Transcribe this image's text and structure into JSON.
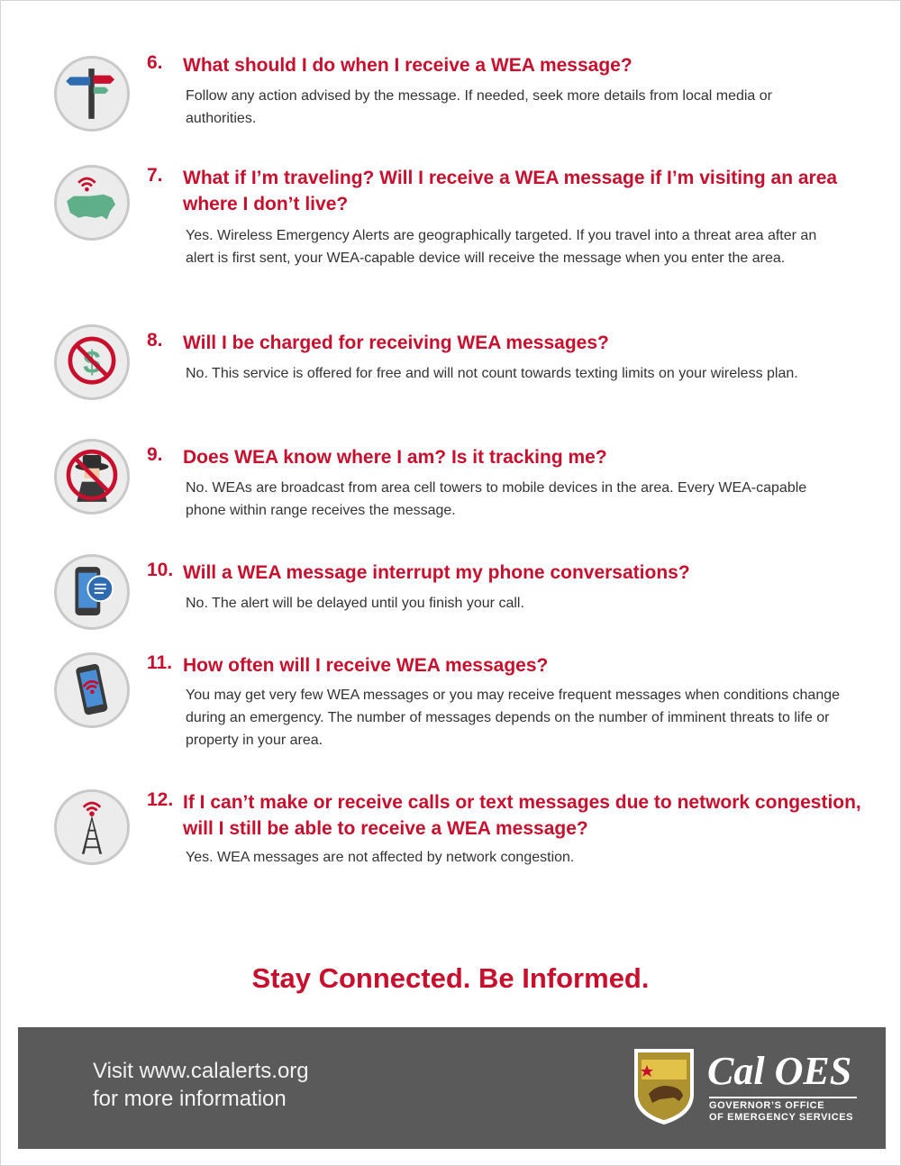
{
  "faq": [
    {
      "number": "6.",
      "icon": "signpost-icon",
      "question": "What should I do when I receive a WEA message?",
      "answer": "Follow any action advised by the message. If needed, seek more details from local media or authorities."
    },
    {
      "number": "7.",
      "icon": "us-map-signal-icon",
      "question": "What if I’m traveling? Will I receive a WEA message if I’m visiting an area where I don’t live?",
      "answer": "Yes. Wireless Emergency Alerts are geographically targeted. If you travel into a threat area after an alert is first sent, your WEA-capable device will receive the message when you enter the area."
    },
    {
      "number": "8.",
      "icon": "no-dollar-icon",
      "question": "Will I be charged for receiving WEA messages?",
      "answer": "No. This service is offered for free and will not count towards texting limits on your wireless plan."
    },
    {
      "number": "9.",
      "icon": "no-spy-icon",
      "question": "Does WEA know where I am? Is it tracking me?",
      "answer": "No. WEAs are broadcast from area cell towers to mobile devices in the area. Every WEA-capable phone within range receives the message."
    },
    {
      "number": "10.",
      "icon": "phone-message-icon",
      "question": "Will a WEA message interrupt my phone conversations?",
      "answer": "No. The alert will be delayed until you finish your call."
    },
    {
      "number": "11.",
      "icon": "phone-alert-icon",
      "question": "How often will I receive WEA messages?",
      "answer": "You may get very few WEA messages or you may receive frequent messages when conditions change during an emergency. The number of messages depends on the number of imminent threats to life or property in your area."
    },
    {
      "number": "12.",
      "icon": "cell-tower-icon",
      "question": "If I can’t make or receive calls or text messages due to network congestion, will I still be able to receive a WEA message?",
      "answer": "Yes. WEA messages are not affected by network congestion."
    }
  ],
  "tagline": "Stay Connected. Be Informed.",
  "footer": {
    "line1": "Visit www.calalerts.org",
    "line2": "for more information",
    "logo_name": "Cal OES",
    "logo_sub1": "GOVERNOR’S OFFICE",
    "logo_sub2": "OF EMERGENCY SERVICES"
  },
  "colors": {
    "accent": "#c8102e",
    "footer_bg": "#5a5a5a",
    "icon_bg": "#ececec"
  }
}
